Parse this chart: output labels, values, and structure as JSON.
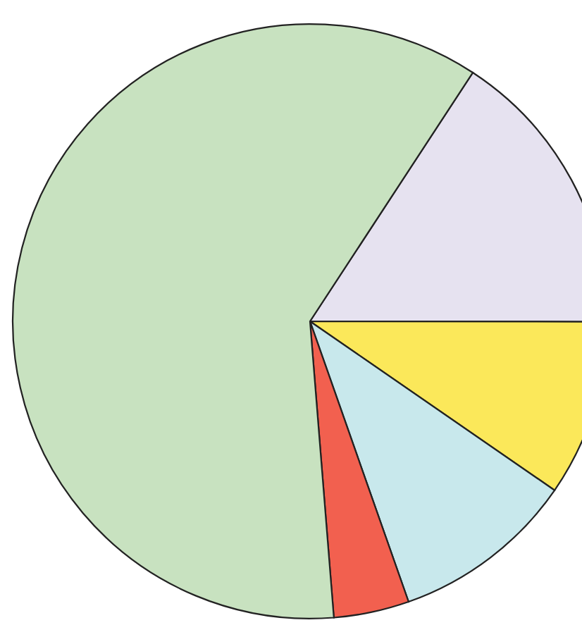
{
  "chart_data": {
    "type": "pie",
    "categories": [
      null,
      null,
      null,
      null,
      null
    ],
    "values": [
      15.8,
      9.6,
      10.0,
      4.1,
      60.5
    ],
    "colors": [
      "#e6e2f0",
      "#fbe85a",
      "#c8e8ec",
      "#f2604f",
      "#c8e2c0"
    ]
  }
}
